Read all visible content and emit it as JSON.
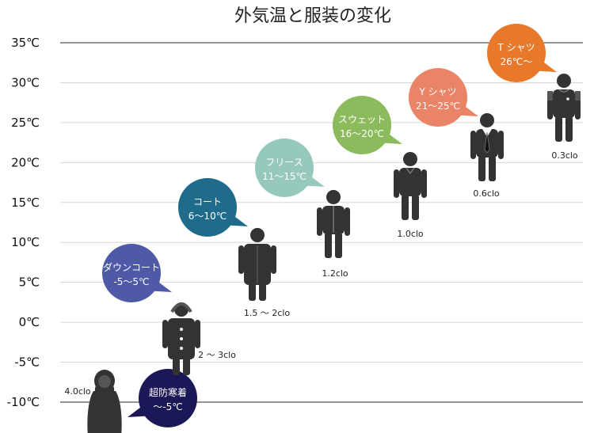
{
  "chart_data": {
    "type": "scatter",
    "title": "外気温と服装の変化",
    "ylim": [
      -10,
      35
    ],
    "y_ticks": [
      {
        "value": 35,
        "label": "35℃"
      },
      {
        "value": 30,
        "label": "30℃"
      },
      {
        "value": 25,
        "label": "25℃"
      },
      {
        "value": 20,
        "label": "20℃"
      },
      {
        "value": 15,
        "label": "15℃"
      },
      {
        "value": 10,
        "label": "10℃"
      },
      {
        "value": 5,
        "label": "5℃"
      },
      {
        "value": 0,
        "label": "0℃"
      },
      {
        "value": -5,
        "label": "-5℃"
      },
      {
        "value": -10,
        "label": "-10℃"
      }
    ],
    "grid": true,
    "items": [
      {
        "clothing": "超防寒着",
        "range_label": "～-5℃",
        "temp_max": -5,
        "clo_label": "4.0clo",
        "color": "#1b1858"
      },
      {
        "clothing": "ダウンコート",
        "range_label": "-5～5℃",
        "temp_min": -5,
        "temp_max": 5,
        "clo_label": "2 ～ 3clo",
        "color": "#4f5aa6"
      },
      {
        "clothing": "コート",
        "range_label": "6～10℃",
        "temp_min": 6,
        "temp_max": 10,
        "clo_label": "1.5 ～ 2clo",
        "color": "#1f6b8c"
      },
      {
        "clothing": "フリース",
        "range_label": "11～15℃",
        "temp_min": 11,
        "temp_max": 15,
        "clo_label": "1.2clo",
        "color": "#97c8bd"
      },
      {
        "clothing": "スウェット",
        "range_label": "16～20℃",
        "temp_min": 16,
        "temp_max": 20,
        "clo_label": "1.0clo",
        "color": "#8bbb5c"
      },
      {
        "clothing": "Y シャツ",
        "range_label": "21～25℃",
        "temp_min": 21,
        "temp_max": 25,
        "clo_label": "0.6clo",
        "color": "#ea8466"
      },
      {
        "clothing": "T シャツ",
        "range_label": "26℃～",
        "temp_min": 26,
        "clo_label": "0.3clo",
        "color": "#e8782a"
      }
    ]
  }
}
